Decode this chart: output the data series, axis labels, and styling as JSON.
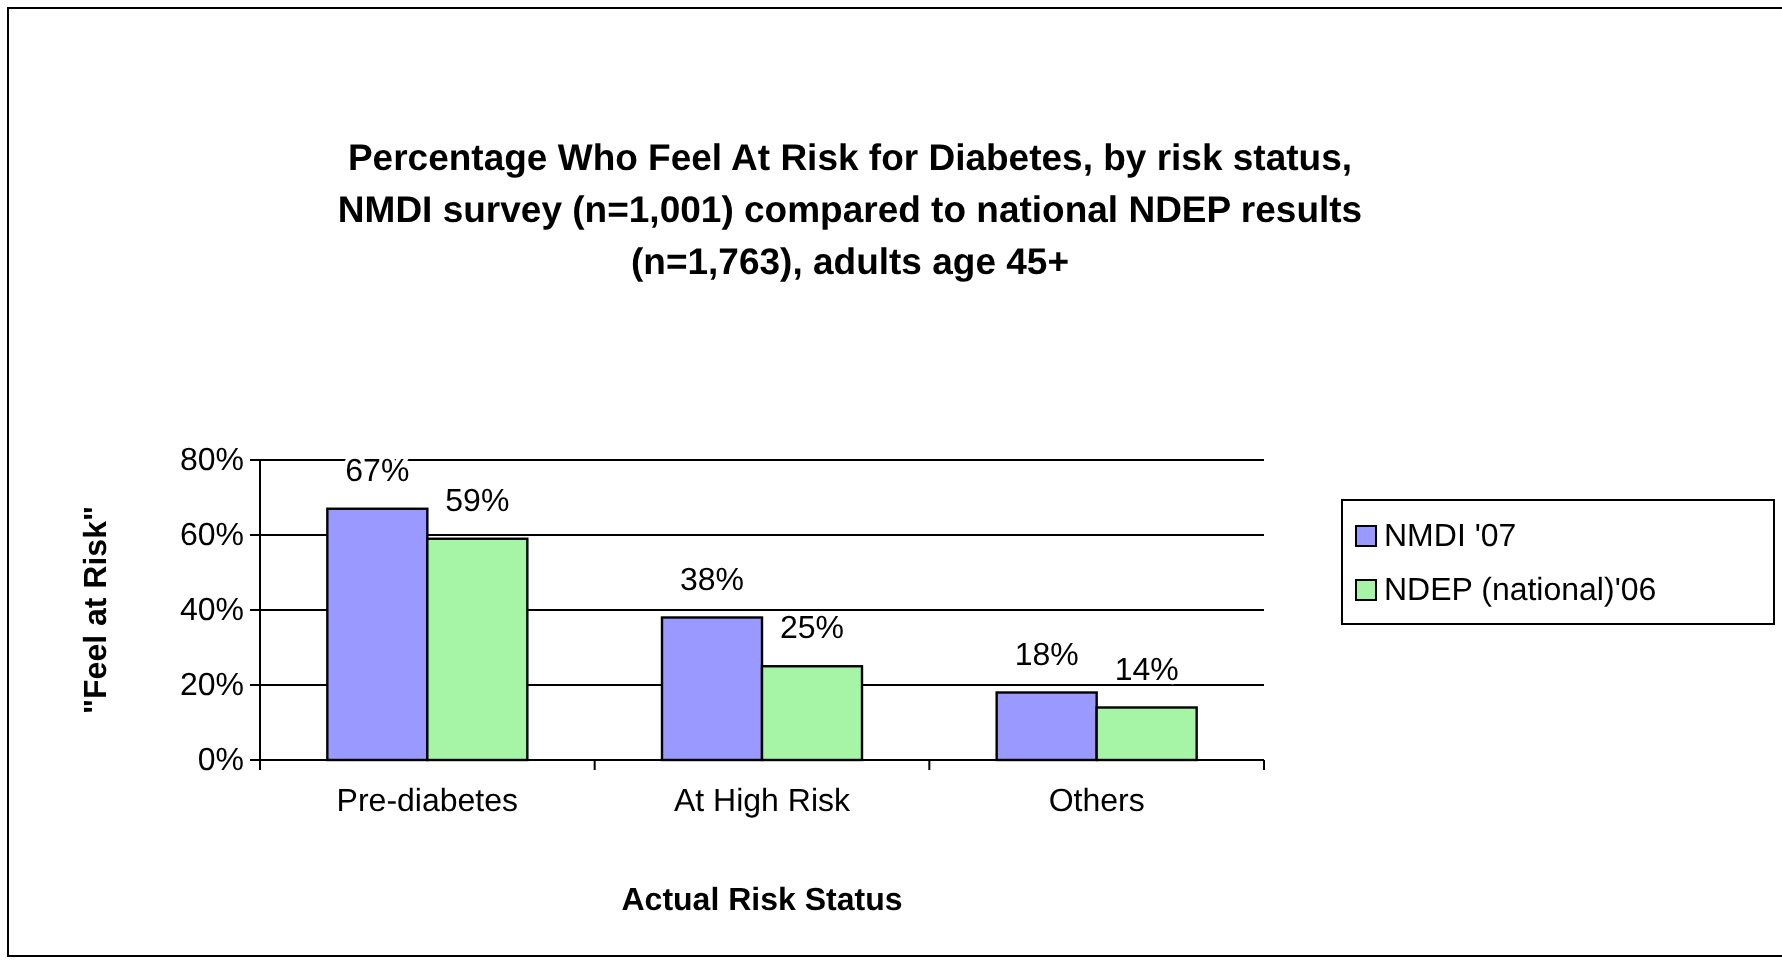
{
  "chart_data": {
    "type": "bar",
    "title": "Percentage Who Feel At Risk for Diabetes, by risk status, NMDI survey (n=1,001) compared to national NDEP results (n=1,763), adults age 45+",
    "xlabel": "Actual Risk Status",
    "ylabel": "\"Feel at Risk\"",
    "categories": [
      "Pre-diabetes",
      "At High Risk",
      "Others"
    ],
    "series": [
      {
        "name": "NMDI '07",
        "color": "#9999ff",
        "values": [
          67,
          38,
          18
        ],
        "value_labels": [
          "67%",
          "38%",
          "18%"
        ]
      },
      {
        "name": "NDEP (national)'06",
        "color": "#a6f5a6",
        "values": [
          59,
          25,
          14
        ],
        "value_labels": [
          "59%",
          "25%",
          "14%"
        ]
      }
    ],
    "ylim": [
      0,
      80
    ],
    "yticks": [
      {
        "value": 0,
        "label": "0%"
      },
      {
        "value": 20,
        "label": "20%"
      },
      {
        "value": 40,
        "label": "40%"
      },
      {
        "value": 60,
        "label": "60%"
      },
      {
        "value": 80,
        "label": "80%"
      }
    ],
    "grid": "y",
    "legend": "right"
  }
}
